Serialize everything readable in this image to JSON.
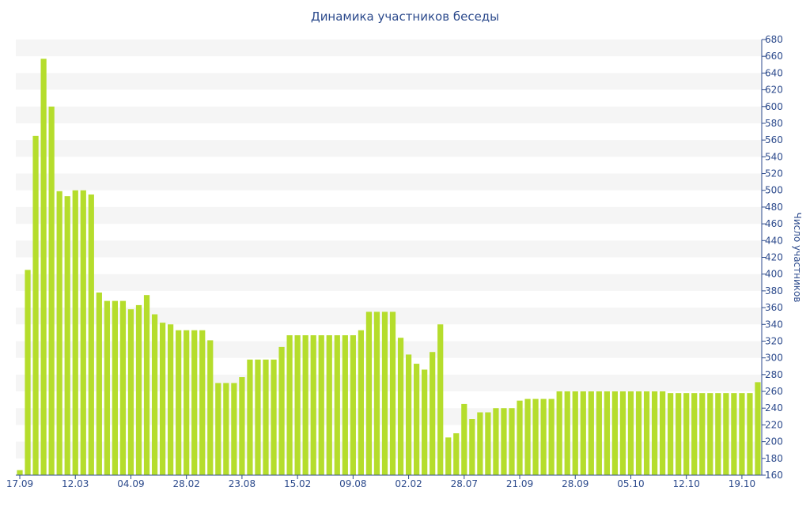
{
  "chart_data": {
    "type": "bar",
    "title": "Динамика участников беседы",
    "ylabel": "Число участников",
    "xlabel": "",
    "ylim": [
      160,
      680
    ],
    "yticks": [
      160,
      180,
      200,
      220,
      240,
      260,
      280,
      300,
      320,
      340,
      360,
      380,
      400,
      420,
      440,
      460,
      480,
      500,
      520,
      540,
      560,
      580,
      600,
      620,
      640,
      660,
      680
    ],
    "y_axis_side": "right",
    "grid": "alternating horizontal bands",
    "bar_color": "#b5dd2c",
    "band_color": "#f5f5f5",
    "text_color": "#2c4a8c",
    "x_tick_labels": [
      {
        "index": 0,
        "label": "17.09"
      },
      {
        "index": 7,
        "label": "12.03"
      },
      {
        "index": 14,
        "label": "04.09"
      },
      {
        "index": 21,
        "label": "28.02"
      },
      {
        "index": 28,
        "label": "23.08"
      },
      {
        "index": 35,
        "label": "15.02"
      },
      {
        "index": 42,
        "label": "09.08"
      },
      {
        "index": 49,
        "label": "02.02"
      },
      {
        "index": 56,
        "label": "28.07"
      },
      {
        "index": 63,
        "label": "21.09"
      },
      {
        "index": 70,
        "label": "28.09"
      },
      {
        "index": 77,
        "label": "05.10"
      },
      {
        "index": 84,
        "label": "12.10"
      },
      {
        "index": 91,
        "label": "19.10"
      }
    ],
    "values": [
      166,
      405,
      565,
      657,
      600,
      499,
      493,
      500,
      500,
      495,
      378,
      368,
      368,
      368,
      358,
      363,
      375,
      352,
      342,
      340,
      333,
      333,
      333,
      333,
      321,
      270,
      270,
      270,
      277,
      298,
      298,
      298,
      298,
      313,
      327,
      327,
      327,
      327,
      327,
      327,
      327,
      327,
      327,
      333,
      355,
      355,
      355,
      355,
      324,
      304,
      293,
      286,
      307,
      340,
      205,
      210,
      245,
      227,
      235,
      235,
      240,
      240,
      240,
      249,
      251,
      251,
      251,
      251,
      260,
      260,
      260,
      260,
      260,
      260,
      260,
      260,
      260,
      260,
      260,
      260,
      260,
      260,
      258,
      258,
      258,
      258,
      258,
      258,
      258,
      258,
      258,
      258,
      258,
      271
    ]
  }
}
